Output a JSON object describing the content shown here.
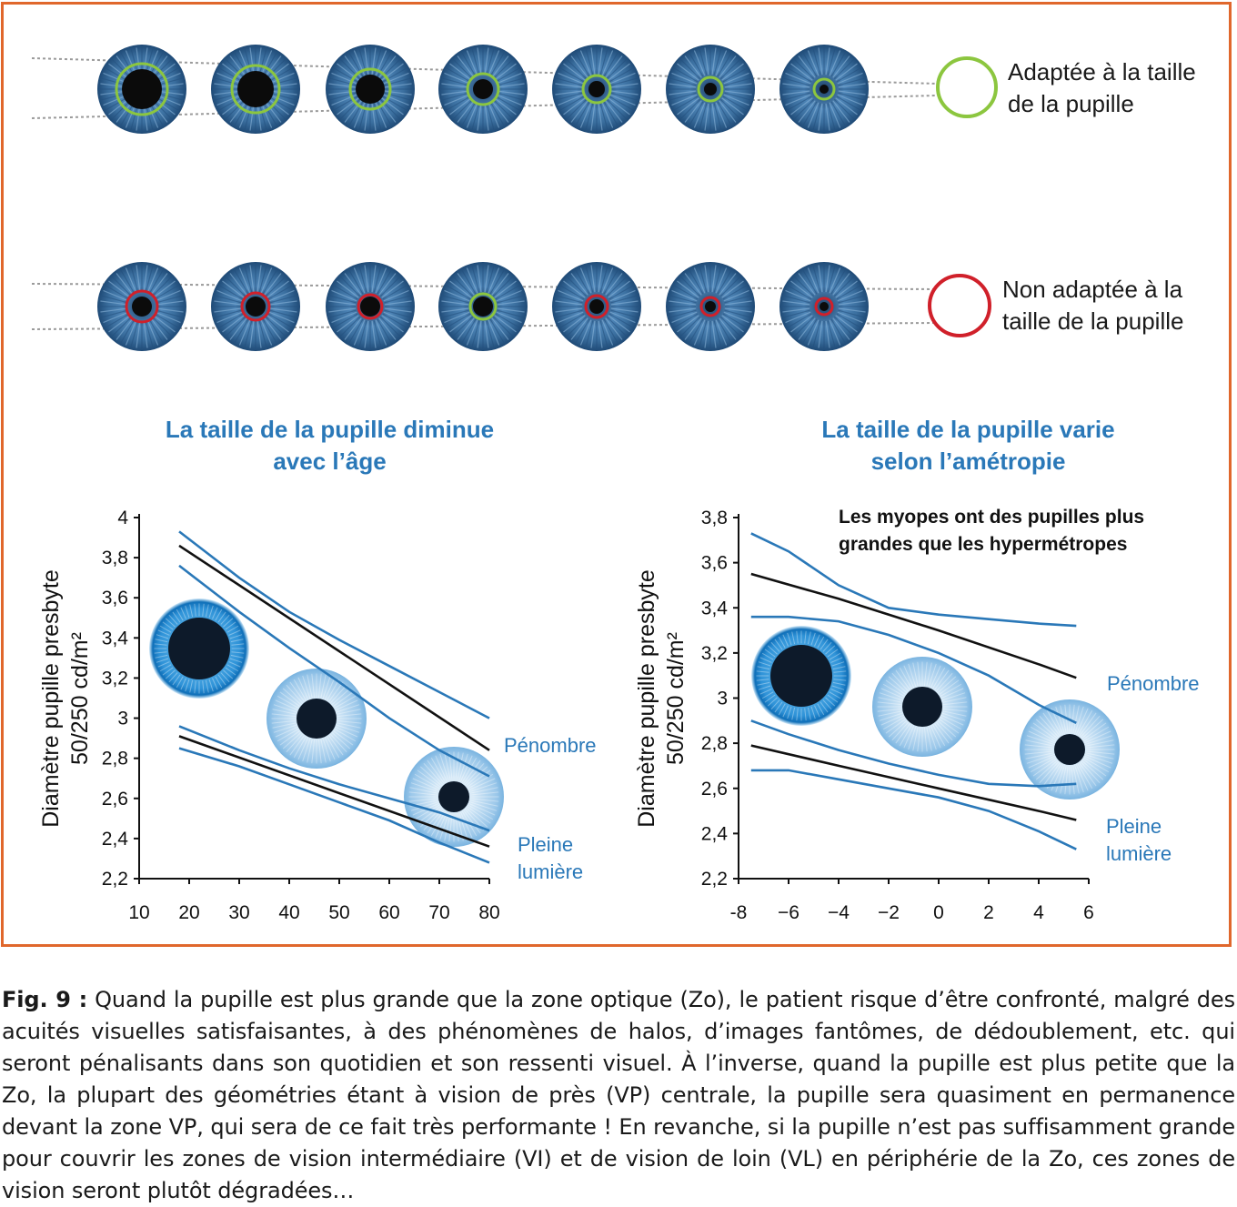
{
  "legend": {
    "adapted": {
      "line1": "Adaptée à la taille",
      "line2": "de la pupille",
      "color": "#8cc63f"
    },
    "not_adapted": {
      "line1": "Non adaptée à la",
      "line2": "taille de la pupille",
      "color": "#d0202a"
    }
  },
  "colors": {
    "iris": "#2f6fa5",
    "blue_line": "#2a78b8",
    "black_line": "#111111",
    "frame": "#e0672c"
  },
  "chart_data": [
    {
      "type": "line",
      "title_line1": "La taille de la pupille diminue",
      "title_line2": "avec l’âge",
      "ylabel_line1": "Diamètre pupille presbyte",
      "ylabel_line2": "50/250 cd/m²",
      "xlim": [
        10,
        80
      ],
      "ylim": [
        2.2,
        4.0
      ],
      "xticks": [
        "10",
        "20",
        "30",
        "40",
        "50",
        "60",
        "70",
        "80"
      ],
      "yticks": [
        "2,2",
        "2,4",
        "2,6",
        "2,8",
        "3",
        "3,2",
        "3,4",
        "3,6",
        "3,8",
        "4"
      ],
      "label_penombre": "Pénombre",
      "label_pleine_1": "Pleine",
      "label_pleine_2": "lumière",
      "series": [
        {
          "group": "Pénombre",
          "role": "upper",
          "x": [
            18,
            30,
            40,
            50,
            60,
            70,
            80
          ],
          "y": [
            3.93,
            3.7,
            3.53,
            3.39,
            3.26,
            3.13,
            3.0
          ]
        },
        {
          "group": "Pénombre",
          "role": "mean",
          "x": [
            18,
            80
          ],
          "y": [
            3.86,
            2.84
          ]
        },
        {
          "group": "Pénombre",
          "role": "lower",
          "x": [
            18,
            30,
            40,
            50,
            60,
            70,
            80
          ],
          "y": [
            3.76,
            3.53,
            3.35,
            3.18,
            3.0,
            2.84,
            2.71
          ]
        },
        {
          "group": "Pleine lumière",
          "role": "upper",
          "x": [
            18,
            30,
            40,
            50,
            60,
            70,
            80
          ],
          "y": [
            2.96,
            2.84,
            2.75,
            2.67,
            2.6,
            2.53,
            2.44
          ]
        },
        {
          "group": "Pleine lumière",
          "role": "mean",
          "x": [
            18,
            80
          ],
          "y": [
            2.91,
            2.36
          ]
        },
        {
          "group": "Pleine lumière",
          "role": "lower",
          "x": [
            18,
            30,
            40,
            50,
            60,
            70,
            80
          ],
          "y": [
            2.85,
            2.76,
            2.67,
            2.58,
            2.49,
            2.38,
            2.28
          ]
        }
      ]
    },
    {
      "type": "line",
      "title_line1": "La taille de la pupille varie",
      "title_line2": "selon l’amétropie",
      "annotation_line1": "Les myopes ont des pupilles plus",
      "annotation_line2": "grandes que les hypermétropes",
      "ylabel_line1": "Diamètre pupille presbyte",
      "ylabel_line2": "50/250 cd/m²",
      "xlim": [
        -8,
        6
      ],
      "ylim": [
        2.2,
        3.8
      ],
      "xticks": [
        "-8",
        "−6",
        "−4",
        "−2",
        "0",
        "2",
        "4",
        "6"
      ],
      "yticks": [
        "2,2",
        "2,4",
        "2,6",
        "2,8",
        "3",
        "3,2",
        "3,4",
        "3,6",
        "3,8"
      ],
      "label_penombre": "Pénombre",
      "label_pleine_1": "Pleine",
      "label_pleine_2": "lumière",
      "series": [
        {
          "group": "Pénombre",
          "role": "upper",
          "x": [
            -7.5,
            -6,
            -4,
            -2,
            0,
            2,
            4,
            5.5
          ],
          "y": [
            3.73,
            3.65,
            3.5,
            3.4,
            3.37,
            3.35,
            3.33,
            3.32
          ]
        },
        {
          "group": "Pénombre",
          "role": "mean",
          "x": [
            -7.5,
            -4,
            0,
            4,
            5.5
          ],
          "y": [
            3.55,
            3.44,
            3.3,
            3.15,
            3.09
          ]
        },
        {
          "group": "Pénombre",
          "role": "lower",
          "x": [
            -7.5,
            -6,
            -4,
            -2,
            0,
            2,
            4,
            5.5
          ],
          "y": [
            3.36,
            3.36,
            3.34,
            3.28,
            3.2,
            3.1,
            2.97,
            2.89
          ]
        },
        {
          "group": "Pleine lumière",
          "role": "upper",
          "x": [
            -7.5,
            -6,
            -4,
            -2,
            0,
            2,
            4,
            5.5
          ],
          "y": [
            2.9,
            2.84,
            2.77,
            2.71,
            2.66,
            2.62,
            2.61,
            2.62
          ]
        },
        {
          "group": "Pleine lumière",
          "role": "mean",
          "x": [
            -7.5,
            -4,
            0,
            4,
            5.5
          ],
          "y": [
            2.79,
            2.7,
            2.6,
            2.5,
            2.46
          ]
        },
        {
          "group": "Pleine lumière",
          "role": "lower",
          "x": [
            -7.5,
            -6,
            -4,
            -2,
            0,
            2,
            4,
            5.5
          ],
          "y": [
            2.68,
            2.68,
            2.64,
            2.6,
            2.56,
            2.5,
            2.41,
            2.33
          ]
        }
      ]
    }
  ],
  "caption": {
    "label": "Fig. 9 :",
    "text": " Quand la pupille est plus grande que la zone optique (Zo), le patient risque d’être confronté, malgré des acuités visuelles satisfaisantes, à des phénomènes de halos, d’images fantômes, de dédoublement, etc. qui seront pénalisants dans son quotidien et son ressenti visuel. À l’inverse, quand la pupille est plus petite que la Zo, la plupart des géométries étant à vision de près (VP) centrale, la pupille sera quasiment en permanence devant la zone VP, qui sera de ce fait très performante ! En revanche, si la pupille n’est pas suffisamment grande pour couvrir les zones de vision intermédiaire (VI) et de vision de loin (VL) en périphérie de la Zo, ces zones de vision seront plutôt dégradées…"
  }
}
